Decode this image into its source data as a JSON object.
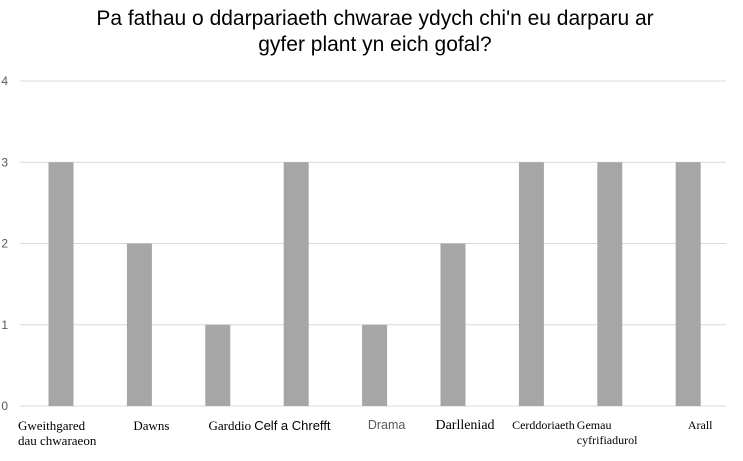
{
  "chart_data": {
    "type": "bar",
    "title": "Pa fathau o ddarpariaeth chwarae ydych chi'n eu darparu ar gyfer plant yn eich gofal?",
    "categories": [
      "Gweithgared dau chwaraeon",
      "Dawns",
      "Garddio",
      "Celf a Chrefft",
      "Drama",
      "Darlleniad",
      "Cerddoriaeth",
      "Gemau cyfrifiadurol",
      "Arall"
    ],
    "values": [
      3,
      2,
      1,
      3,
      1,
      2,
      3,
      3,
      3
    ],
    "yticks": [
      0,
      1,
      2,
      3,
      4
    ],
    "ylim": [
      0,
      4
    ],
    "xlabel": "",
    "ylabel": "",
    "grid": true,
    "legend": "none",
    "bar_color": "#a6a6a6",
    "grid_color": "#d9d9d9"
  }
}
